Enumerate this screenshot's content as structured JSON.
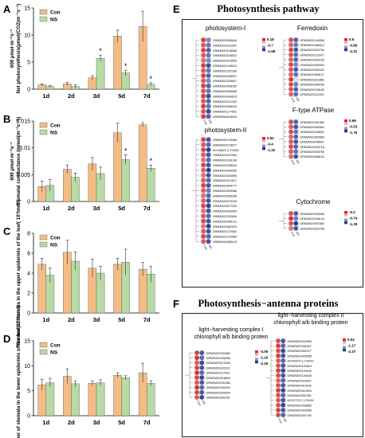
{
  "panels": {
    "A": "A",
    "B": "B",
    "C": "C",
    "D": "D",
    "E": "E",
    "F": "F"
  },
  "chart_data": [
    {
      "type": "bar",
      "title": "",
      "ylabel": "Net photosynthesis(µmol(CO2)m⁻²s⁻¹)",
      "ylabel_prefix": "600 µmol·m⁻²s⁻¹",
      "categories": [
        "1d",
        "2d",
        "3d",
        "5d",
        "7d"
      ],
      "ylim": [
        0,
        15
      ],
      "yticks": [
        0,
        5,
        10,
        15
      ],
      "series": [
        {
          "name": "Con",
          "color": "#f4bd86",
          "values": [
            0.8,
            1.0,
            2.1,
            9.8,
            11.6
          ],
          "errors": [
            0.2,
            0.3,
            0.4,
            1.1,
            2.8
          ]
        },
        {
          "name": "NS",
          "color": "#b7dba3",
          "values": [
            0.5,
            0.5,
            5.7,
            3.0,
            0.9
          ],
          "errors": [
            0.2,
            0.3,
            0.6,
            0.5,
            0.3
          ]
        }
      ],
      "significance": [
        "",
        "",
        "*",
        "*",
        "*"
      ]
    },
    {
      "type": "bar",
      "title": "",
      "ylabel": "Stomatal conductance (mmol(m⁻²s⁻¹))",
      "ylabel_prefix": "600 µmol·m⁻²s⁻¹",
      "categories": [
        "1d",
        "2d",
        "3d",
        "5d",
        "7d"
      ],
      "ylim": [
        0,
        0.015
      ],
      "yticks": [
        0,
        0.005,
        0.01,
        0.015
      ],
      "series": [
        {
          "name": "Con",
          "color": "#f4bd86",
          "values": [
            0.0028,
            0.006,
            0.007,
            0.0128,
            0.0143
          ],
          "errors": [
            0.001,
            0.0008,
            0.0012,
            0.0018,
            0.0004
          ]
        },
        {
          "name": "NS",
          "color": "#b7dba3",
          "values": [
            0.003,
            0.0045,
            0.0052,
            0.0078,
            0.0062
          ],
          "errors": [
            0.0011,
            0.0008,
            0.0012,
            0.0009,
            0.0006
          ]
        }
      ],
      "significance": [
        "",
        "",
        "",
        "*",
        "*"
      ]
    },
    {
      "type": "bar",
      "title": "",
      "ylabel": "Number of stomata in the upper epidermis of the leaf( 10³/mm²)",
      "categories": [
        "1d",
        "2d",
        "3d",
        "5d",
        "7d"
      ],
      "ylim": [
        0,
        8
      ],
      "yticks": [
        0,
        2,
        4,
        6,
        8
      ],
      "series": [
        {
          "name": "Con",
          "color": "#f4bd86",
          "values": [
            4.9,
            6.1,
            4.5,
            4.9,
            4.4
          ],
          "errors": [
            0.6,
            1.2,
            0.9,
            0.6,
            0.7
          ]
        },
        {
          "name": "NS",
          "color": "#b7dba3",
          "values": [
            3.8,
            5.2,
            4.0,
            5.1,
            3.9
          ],
          "errors": [
            0.7,
            0.9,
            0.7,
            1.3,
            0.8
          ]
        }
      ],
      "significance": [
        "",
        "",
        "",
        "",
        ""
      ]
    },
    {
      "type": "bar",
      "title": "",
      "ylabel": "Number of stomata in the lower epidermis of the leaf(10³/mm²)",
      "categories": [
        "1d",
        "2d",
        "3d",
        "5d",
        "7d"
      ],
      "ylim": [
        0,
        15
      ],
      "yticks": [
        0,
        5,
        10,
        15
      ],
      "series": [
        {
          "name": "Con",
          "color": "#f4bd86",
          "values": [
            6.2,
            7.9,
            6.5,
            8.1,
            8.6
          ],
          "errors": [
            1.1,
            1.5,
            0.5,
            0.5,
            1.9
          ]
        },
        {
          "name": "NS",
          "color": "#b7dba3",
          "values": [
            6.6,
            6.4,
            6.6,
            7.6,
            6.5
          ],
          "errors": [
            0.9,
            0.6,
            0.6,
            0.4,
            0.5
          ]
        }
      ],
      "significance": [
        "",
        "",
        "",
        "",
        ""
      ]
    }
  ],
  "section_e": {
    "title": "Photosynthesis pathway",
    "blocks": [
      {
        "key": "ps1",
        "title": "photosystem-I",
        "legend": [
          "0.18",
          "-0.7",
          "-1.58"
        ],
        "columns": [
          "Con",
          "NS"
        ],
        "genes": [
          "GRMZM2G085646",
          "GRMZM2G012397",
          "GRMZM2G016066",
          "GRMZM2G016622",
          "GRMZM2G014653",
          "GRMZM2G145224",
          "GRMZM2G157290",
          "GRMZM2G096907",
          "GRMZM2G329847",
          "GRMZM2G048150",
          "GRMZM2G069098",
          "GRMZM2G049815",
          "GRMZM2G121342",
          "GRMZM2G096224",
          "GRMZM2G177551",
          "GRMZM5G815533"
        ],
        "matrix": [
          [
            0.1,
            -1.2
          ],
          [
            0.0,
            -1.3
          ],
          [
            0.1,
            -1.4
          ],
          [
            0.0,
            -1.3
          ],
          [
            -0.1,
            -1.2
          ],
          [
            0.1,
            -1.5
          ],
          [
            0.0,
            -1.3
          ],
          [
            0.1,
            -1.4
          ],
          [
            0.0,
            -1.2
          ],
          [
            0.1,
            -1.4
          ],
          [
            0.0,
            -1.3
          ],
          [
            0.1,
            -1.5
          ],
          [
            0.0,
            -1.4
          ],
          [
            0.1,
            -1.3
          ],
          [
            0.0,
            -1.5
          ],
          [
            0.1,
            -1.4
          ]
        ]
      },
      {
        "key": "ps2",
        "title": "photosystem-II",
        "legend": [
          "0.52",
          "-0.4",
          "-1.32"
        ],
        "columns": [
          "Con",
          "NS"
        ],
        "genes": [
          "GRMZM2G176466",
          "GRMZM2G016677",
          "AC198023.3_FG001",
          "GRMZM2G047954",
          "GRMZM2G134130",
          "GRMZM2G308944",
          "GRMZM2G040050",
          "GRMZM2G034096",
          "GRMZM2G021617",
          "GRMZM2G084777",
          "GRMZM2G009966",
          "GRMZM2G025256",
          "GRMZM2G070239",
          "GRMZM2G077333",
          "GRMZM2G093453",
          "GRMZM2G132506",
          "GRMZM2G405131",
          "GRMZM2G087870",
          "GRMZM2G172962",
          "GRMZM2G174984",
          "GRMZM2G455413"
        ],
        "matrix": [
          [
            0.4,
            -1.2
          ],
          [
            0.3,
            -1.1
          ],
          [
            0.4,
            -1.3
          ],
          [
            0.3,
            -1.2
          ],
          [
            0.2,
            -1.1
          ],
          [
            0.4,
            -1.2
          ],
          [
            0.3,
            -1.3
          ],
          [
            0.2,
            -1.2
          ],
          [
            0.3,
            -1.1
          ],
          [
            0.4,
            -1.2
          ],
          [
            0.3,
            -1.0
          ],
          [
            0.2,
            -1.1
          ],
          [
            0.3,
            -1.2
          ],
          [
            0.4,
            -1.3
          ],
          [
            0.2,
            -1.2
          ],
          [
            0.3,
            -1.1
          ],
          [
            0.4,
            -1.2
          ],
          [
            0.2,
            -1.3
          ],
          [
            0.3,
            -1.2
          ],
          [
            0.4,
            -1.1
          ],
          [
            0.3,
            -1.2
          ]
        ]
      },
      {
        "key": "fd",
        "title": "Ferredoxin",
        "legend": [
          "0.6",
          "-0.86",
          "-2.31"
        ],
        "columns": [
          "Con",
          "NS"
        ],
        "genes": [
          "GRMZM2G146395",
          "GRMZM2G088313",
          "GRMZM2G002754",
          "GRMZM2G122077",
          "GRMZM2G009765",
          "GRMZM2G059003",
          "GRMZM2G083342",
          "GRMZM2G058127",
          "GRMZM2G011858",
          "GRMZM2G089760",
          "GRMZM2G106160",
          "GRMZM2G122337"
        ],
        "matrix": [
          [
            0.3,
            -2.0
          ],
          [
            0.2,
            -1.8
          ],
          [
            0.4,
            -2.1
          ],
          [
            0.3,
            -1.9
          ],
          [
            0.2,
            -2.0
          ],
          [
            0.4,
            -1.7
          ],
          [
            0.3,
            -2.1
          ],
          [
            0.2,
            -1.9
          ],
          [
            0.5,
            -1.0
          ],
          [
            0.4,
            -1.8
          ],
          [
            0.3,
            -2.0
          ],
          [
            0.2,
            -1.9
          ]
        ]
      },
      {
        "key": "atp",
        "title": "F-type ATPase",
        "legend": [
          "0.69",
          "-0.53",
          "-1.76"
        ],
        "columns": [
          "Con",
          "NS"
        ],
        "genes": [
          "GRMZM2G401060",
          "GRMZM2G062863",
          "GRMZM2G118634",
          "GRMZM2G062554",
          "GRMZM2G048907",
          "GRMZM2G025718",
          "GRMZM2G025759",
          "GRMZM2G468142"
        ],
        "matrix": [
          [
            0.5,
            -1.5
          ],
          [
            0.4,
            -1.6
          ],
          [
            0.5,
            -1.4
          ],
          [
            0.3,
            -1.5
          ],
          [
            0.4,
            -1.6
          ],
          [
            0.5,
            -1.5
          ],
          [
            0.4,
            -1.4
          ],
          [
            0.3,
            -1.6
          ]
        ]
      },
      {
        "key": "cyt",
        "title": "Cytochrome",
        "legend": [
          "-0.2",
          "-0.74",
          "-1.29"
        ],
        "columns": [
          "Con",
          "NS"
        ],
        "genes": [
          "GRMZM2G038365",
          "GRMZM2G168143",
          "GRMZM2G097562",
          "GRMZM2G162798"
        ],
        "matrix": [
          [
            -0.3,
            -1.2
          ],
          [
            -0.2,
            -1.1
          ],
          [
            -0.3,
            -1.3
          ],
          [
            -0.4,
            -1.2
          ]
        ]
      }
    ]
  },
  "section_f": {
    "title": "Photosynthesis−antenna proteins",
    "blocks": [
      {
        "key": "lhc1",
        "title_line1": "light−harvesting complex I",
        "title_line2": "chlorophyll a/b binding protein",
        "legend": [
          "-0.06",
          "-1.16",
          "-2.26"
        ],
        "columns": [
          "Con",
          "NS"
        ],
        "genes": [
          "GRMZM2G030980",
          "GRMZM2G166266",
          "GRMZM2G072280",
          "GRMZM2G102101",
          "GRMZM2G117812",
          "GRMZM2G016804",
          "GRMZM2G151384",
          "GRMZM2G094329",
          "GRMZM2G039539",
          "GRMZM2G092251"
        ],
        "matrix": [
          [
            -0.2,
            -2.1
          ],
          [
            -0.1,
            -2.0
          ],
          [
            -0.3,
            -2.2
          ],
          [
            -0.2,
            -2.1
          ],
          [
            -0.1,
            -2.0
          ],
          [
            -0.2,
            -2.2
          ],
          [
            -0.3,
            -2.1
          ],
          [
            -0.1,
            -2.0
          ],
          [
            -0.2,
            -2.1
          ],
          [
            -0.3,
            -2.2
          ]
        ]
      },
      {
        "key": "lhc2",
        "title_line1": "light−harvesting complex II",
        "title_line2": "chlorophyll a/b binding protein",
        "legend": [
          "0.02",
          "-1.17",
          "-2.37"
        ],
        "columns": [
          "Con",
          "NS"
        ],
        "genes": [
          "GRMZM2G033906",
          "GRMZM2G092427",
          "GRMZM2G351977",
          "GRMZM2G429955",
          "AC209373.3_FG010",
          "GRMZM2G120619",
          "GRMZM2G104549",
          "GRMZM2G149428",
          "GRMZM2G018427",
          "GRMZM2G414192",
          "GRMZM2G010934",
          "GRMZM2G057281",
          "AC207722.2_FG009",
          "GRMZM2G053669",
          "GRMZM2G402566",
          "GRMZM2G007750"
        ],
        "matrix": [
          [
            -0.2,
            -2.2
          ],
          [
            -0.1,
            -2.1
          ],
          [
            -0.2,
            -2.3
          ],
          [
            -0.1,
            -2.2
          ],
          [
            -0.3,
            -2.1
          ],
          [
            -0.2,
            -2.2
          ],
          [
            -0.1,
            -2.3
          ],
          [
            -0.2,
            -2.2
          ],
          [
            -0.3,
            -2.1
          ],
          [
            -0.2,
            -2.2
          ],
          [
            -0.1,
            -2.3
          ],
          [
            -0.2,
            -2.1
          ],
          [
            -0.3,
            -2.2
          ],
          [
            -0.2,
            -2.3
          ],
          [
            -0.1,
            -2.2
          ],
          [
            -0.2,
            -2.1
          ]
        ]
      }
    ]
  },
  "colors": {
    "con": "#f4bd86",
    "ns": "#b7dba3",
    "heat_high": "#e0252a",
    "heat_mid": "#f3f3f3",
    "heat_low": "#27399a"
  }
}
